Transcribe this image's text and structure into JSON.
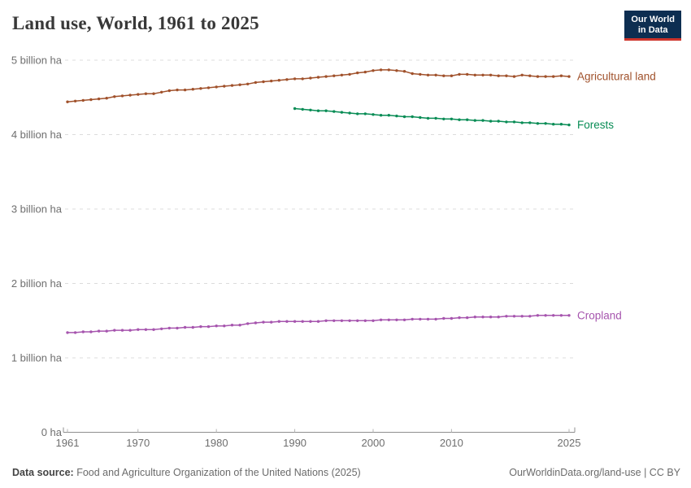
{
  "header": {
    "title": "Land use, World, 1961 to 2025",
    "logo": {
      "line1": "Our World",
      "line2": "in Data"
    }
  },
  "footer": {
    "source_label": "Data source:",
    "source_text": " Food and Agriculture Organization of the United Nations (2025)",
    "attribution": "OurWorldinData.org/land-use | CC BY"
  },
  "colors": {
    "agricultural_land": "#a0512b",
    "forests": "#088c55",
    "cropland": "#a655ae",
    "logo_navy": "#0d2e51",
    "logo_red": "#ce342b"
  },
  "chart_data": {
    "type": "line",
    "title": "Land use, World, 1961 to 2025",
    "entity": "World",
    "unit": "billion ha",
    "x_range": [
      1961,
      2025
    ],
    "ylim": [
      0,
      5
    ],
    "grid": true,
    "gridline_style": "dashed",
    "legend_position": "right-of-line-ends",
    "x_ticks": [
      1961,
      1970,
      1980,
      1990,
      2000,
      2010,
      2025
    ],
    "y_ticks": [
      {
        "value": 0,
        "label": "0 ha"
      },
      {
        "value": 1,
        "label": "1 billion ha"
      },
      {
        "value": 2,
        "label": "2 billion ha"
      },
      {
        "value": 3,
        "label": "3 billion ha"
      },
      {
        "value": 4,
        "label": "4 billion ha"
      },
      {
        "value": 5,
        "label": "5 billion ha"
      }
    ],
    "series": [
      {
        "name": "Agricultural land",
        "color": "#a0512b",
        "start_year": 1961,
        "values": [
          4.44,
          4.45,
          4.46,
          4.47,
          4.48,
          4.49,
          4.51,
          4.52,
          4.53,
          4.54,
          4.55,
          4.55,
          4.57,
          4.59,
          4.6,
          4.6,
          4.61,
          4.62,
          4.63,
          4.64,
          4.65,
          4.66,
          4.67,
          4.68,
          4.7,
          4.71,
          4.72,
          4.73,
          4.74,
          4.75,
          4.75,
          4.76,
          4.77,
          4.78,
          4.79,
          4.8,
          4.81,
          4.83,
          4.84,
          4.86,
          4.87,
          4.87,
          4.86,
          4.85,
          4.82,
          4.81,
          4.8,
          4.8,
          4.79,
          4.79,
          4.81,
          4.81,
          4.8,
          4.8,
          4.8,
          4.79,
          4.79,
          4.78,
          4.8,
          4.79,
          4.78,
          4.78,
          4.78,
          4.79,
          4.78
        ]
      },
      {
        "name": "Forests",
        "color": "#088c55",
        "start_year": 1990,
        "values": [
          4.35,
          4.34,
          4.33,
          4.32,
          4.32,
          4.31,
          4.3,
          4.29,
          4.28,
          4.28,
          4.27,
          4.26,
          4.26,
          4.25,
          4.24,
          4.24,
          4.23,
          4.22,
          4.22,
          4.21,
          4.21,
          4.2,
          4.2,
          4.19,
          4.19,
          4.18,
          4.18,
          4.17,
          4.17,
          4.16,
          4.16,
          4.15,
          4.15,
          4.14,
          4.14,
          4.13
        ]
      },
      {
        "name": "Cropland",
        "color": "#a655ae",
        "start_year": 1961,
        "values": [
          1.34,
          1.34,
          1.35,
          1.35,
          1.36,
          1.36,
          1.37,
          1.37,
          1.37,
          1.38,
          1.38,
          1.38,
          1.39,
          1.4,
          1.4,
          1.41,
          1.41,
          1.42,
          1.42,
          1.43,
          1.43,
          1.44,
          1.44,
          1.46,
          1.47,
          1.48,
          1.48,
          1.49,
          1.49,
          1.49,
          1.49,
          1.49,
          1.49,
          1.5,
          1.5,
          1.5,
          1.5,
          1.5,
          1.5,
          1.5,
          1.51,
          1.51,
          1.51,
          1.51,
          1.52,
          1.52,
          1.52,
          1.52,
          1.53,
          1.53,
          1.54,
          1.54,
          1.55,
          1.55,
          1.55,
          1.55,
          1.56,
          1.56,
          1.56,
          1.56,
          1.57,
          1.57,
          1.57,
          1.57,
          1.57
        ]
      }
    ]
  }
}
